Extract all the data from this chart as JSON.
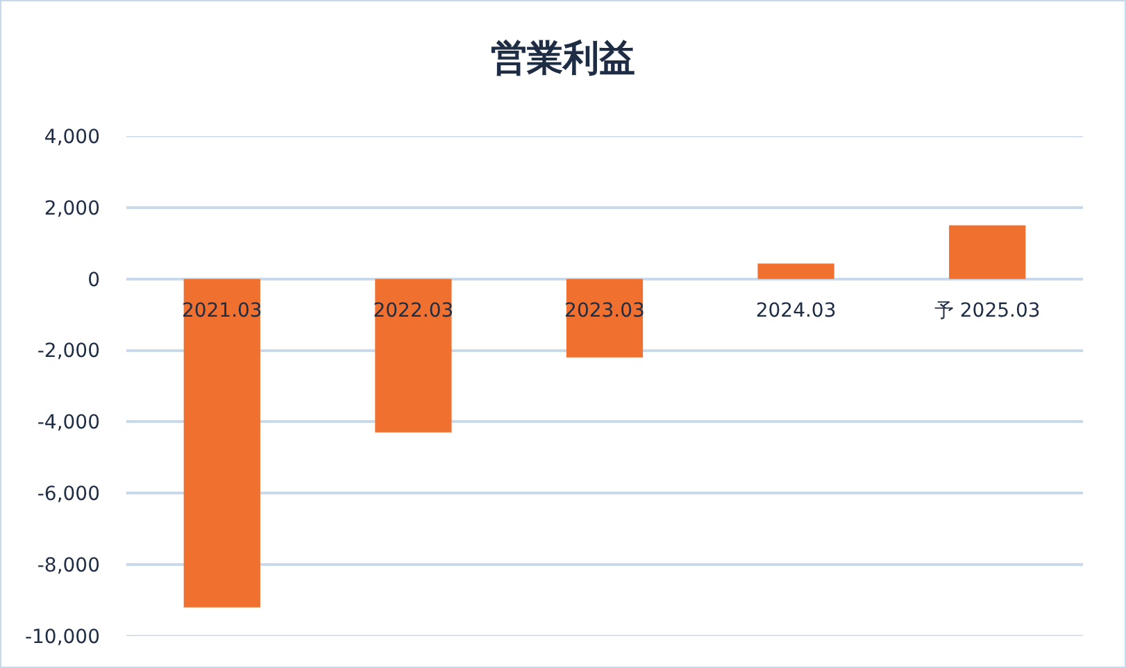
{
  "chart_data": {
    "type": "bar",
    "title": "営業利益",
    "categories": [
      "2021.03",
      "2022.03",
      "2023.03",
      "2024.03",
      "予 2025.03"
    ],
    "values": [
      -9200,
      -4300,
      -2200,
      430,
      1500
    ],
    "color": "#f07030",
    "ylim": [
      -10000,
      4000
    ],
    "yticks": [
      {
        "value": -10000,
        "label": "-10,000"
      },
      {
        "value": -8000,
        "label": "-8,000"
      },
      {
        "value": -6000,
        "label": "-6,000"
      },
      {
        "value": -4000,
        "label": "-4,000"
      },
      {
        "value": -2000,
        "label": "-2,000"
      },
      0,
      {
        "value": 2000,
        "label": "2,000"
      },
      {
        "value": 4000,
        "label": "4,000"
      }
    ],
    "grid": "y"
  }
}
